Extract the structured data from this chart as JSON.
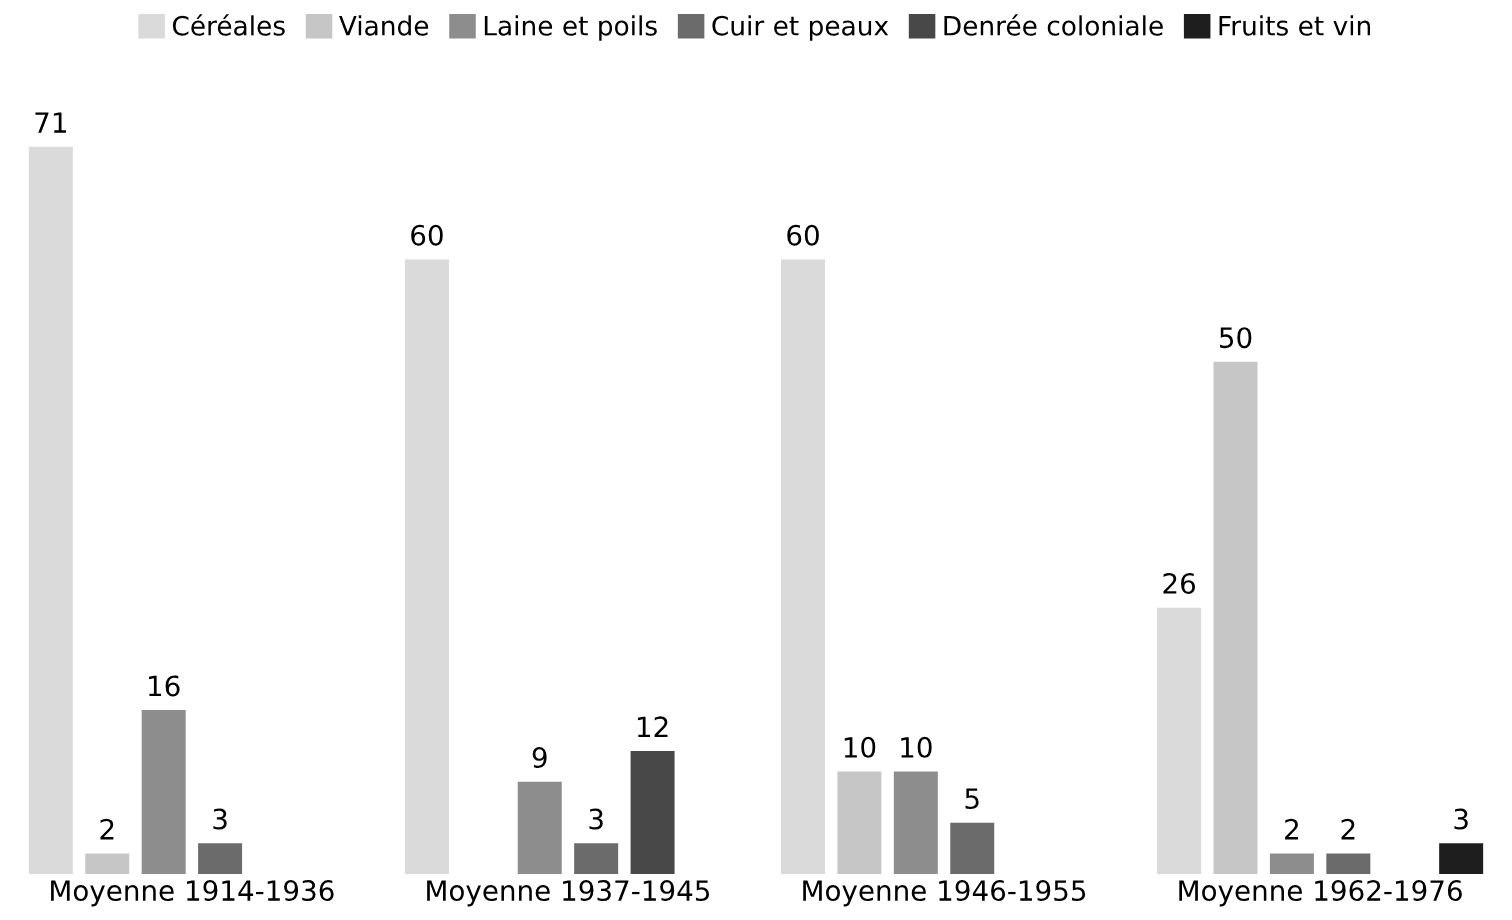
{
  "chart_data": {
    "type": "bar",
    "categories": [
      "Moyenne 1914-1936",
      "Moyenne 1937-1945",
      "Moyenne 1946-1955",
      "Moyenne 1962-1976"
    ],
    "series": [
      {
        "name": "Céréales",
        "color": "#dadada",
        "values": [
          71,
          60,
          60,
          26
        ]
      },
      {
        "name": "Viande",
        "color": "#c6c6c6",
        "values": [
          2,
          null,
          10,
          50
        ]
      },
      {
        "name": "Laine et poils",
        "color": "#8d8d8d",
        "values": [
          16,
          9,
          10,
          2
        ]
      },
      {
        "name": "Cuir et peaux",
        "color": "#6b6b6b",
        "values": [
          3,
          3,
          5,
          2
        ]
      },
      {
        "name": "Denrée coloniale",
        "color": "#484848",
        "values": [
          null,
          12,
          null,
          null
        ]
      },
      {
        "name": "Fruits et vin",
        "color": "#1e1e1e",
        "values": [
          null,
          null,
          null,
          3
        ]
      }
    ],
    "data_labels": true,
    "legend": "top",
    "grid": false
  }
}
